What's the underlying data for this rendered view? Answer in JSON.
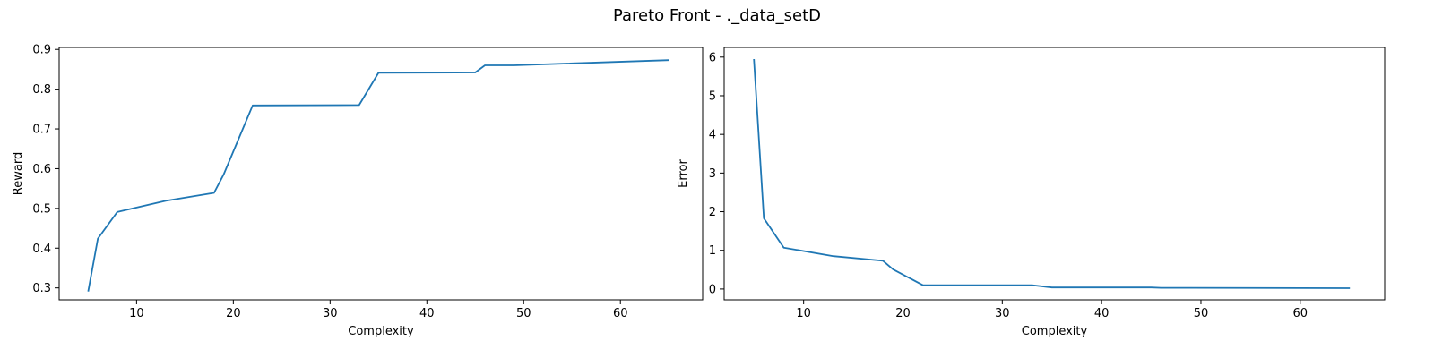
{
  "figure": {
    "title": "Pareto Front - ._data_setD"
  },
  "colors": {
    "series": "#1f77b4",
    "frame": "#000000",
    "background": "#ffffff"
  },
  "chart_data": [
    {
      "type": "line",
      "xlabel": "Complexity",
      "ylabel": "Reward",
      "xlim": [
        2,
        68.5
      ],
      "ylim": [
        0.27,
        0.905
      ],
      "xticks": [
        10,
        20,
        30,
        40,
        50,
        60
      ],
      "yticks": [
        0.3,
        0.4,
        0.5,
        0.6,
        0.7,
        0.8,
        0.9
      ],
      "grid": false,
      "x": [
        5,
        6,
        8,
        13,
        18,
        19,
        22,
        33,
        35,
        45,
        46,
        49,
        65
      ],
      "y": [
        0.291,
        0.424,
        0.491,
        0.519,
        0.539,
        0.585,
        0.759,
        0.76,
        0.841,
        0.842,
        0.86,
        0.86,
        0.873
      ]
    },
    {
      "type": "line",
      "xlabel": "Complexity",
      "ylabel": "Error",
      "xlim": [
        2,
        68.5
      ],
      "ylim": [
        -0.28,
        6.25
      ],
      "xticks": [
        10,
        20,
        30,
        40,
        50,
        60
      ],
      "yticks": [
        0,
        1,
        2,
        3,
        4,
        5,
        6
      ],
      "grid": false,
      "x": [
        5,
        6,
        8,
        13,
        18,
        19,
        22,
        33,
        35,
        45,
        46,
        49,
        65
      ],
      "y": [
        5.95,
        1.83,
        1.07,
        0.85,
        0.73,
        0.51,
        0.1,
        0.1,
        0.04,
        0.04,
        0.03,
        0.03,
        0.02
      ]
    }
  ]
}
